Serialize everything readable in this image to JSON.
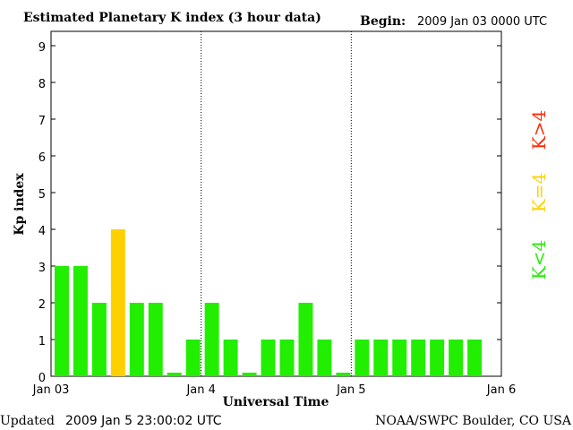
{
  "header": {
    "title": "Estimated Planetary K index (3 hour data)",
    "begin_label": "Begin:",
    "begin_value": "2009 Jan 03 0000 UTC"
  },
  "footer": {
    "updated_label": "Updated",
    "updated_value": "2009 Jan  5 23:00:02 UTC",
    "source": "NOAA/SWPC Boulder, CO USA"
  },
  "legend": [
    {
      "text": "K<4",
      "color": "#22ee00"
    },
    {
      "text": "K=4",
      "color": "#ffd000"
    },
    {
      "text": "K>4",
      "color": "#ff2a00"
    }
  ],
  "chart_data": {
    "type": "bar",
    "title": "Estimated Planetary K index (3 hour data)",
    "xlabel": "Universal Time",
    "ylabel": "Kp index",
    "ylim": [
      0,
      9
    ],
    "yticks": [
      "0",
      "1",
      "2",
      "3",
      "4",
      "5",
      "6",
      "7",
      "8",
      "9"
    ],
    "xticks": [
      "Jan 03",
      "Jan 4",
      "Jan 5",
      "Jan 6"
    ],
    "day_separators": [
      "Jan 4",
      "Jan 5"
    ],
    "bins_per_day": 8,
    "values": [
      3,
      3,
      2,
      4,
      2,
      2,
      0,
      1,
      2,
      1,
      0,
      1,
      1,
      2,
      1,
      0,
      1,
      1,
      1,
      1,
      1,
      1,
      1
    ],
    "color_low": "#22ee00",
    "color_eq4": "#ffd000",
    "color_high": "#ff2a00"
  }
}
